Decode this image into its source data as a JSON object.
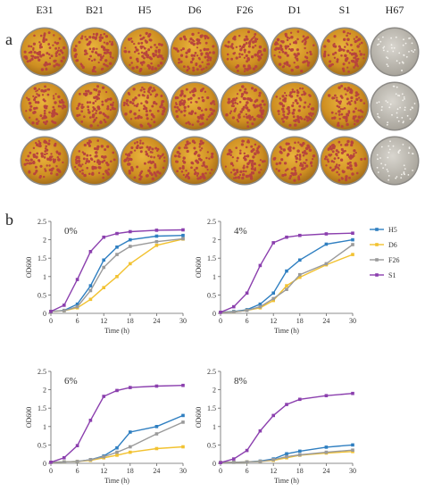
{
  "panel_a": {
    "letter": "a",
    "strains": [
      "E31",
      "B21",
      "H5",
      "D6",
      "F26",
      "D1",
      "S1",
      "H67"
    ],
    "rows": 3
  },
  "panel_b": {
    "letter": "b"
  },
  "colors": {
    "H5": "#2f7fc1",
    "D6": "#f2c230",
    "F26": "#9a9a9a",
    "S1": "#8b3fae",
    "axis": "#666666"
  },
  "chart_data": [
    {
      "type": "line",
      "annotation": "0%",
      "xlabel": "Time (h)",
      "ylabel": "OD600",
      "x": [
        0,
        3,
        6,
        9,
        12,
        15,
        18,
        24,
        30
      ],
      "xticks": [
        0,
        6,
        12,
        18,
        24,
        30
      ],
      "yticks": [
        0,
        0.5,
        1,
        1.5,
        2,
        2.5
      ],
      "xlim": [
        0,
        30
      ],
      "ylim": [
        0,
        2.5
      ],
      "series": [
        {
          "name": "H5",
          "values": [
            0.05,
            0.08,
            0.25,
            0.75,
            1.45,
            1.8,
            2.0,
            2.1,
            2.12
          ]
        },
        {
          "name": "D6",
          "values": [
            0.05,
            0.07,
            0.15,
            0.38,
            0.7,
            1.0,
            1.35,
            1.85,
            2.02
          ]
        },
        {
          "name": "F26",
          "values": [
            0.05,
            0.07,
            0.18,
            0.62,
            1.25,
            1.6,
            1.82,
            1.95,
            2.03
          ]
        },
        {
          "name": "S1",
          "values": [
            0.05,
            0.22,
            0.92,
            1.68,
            2.07,
            2.17,
            2.22,
            2.26,
            2.27
          ]
        }
      ]
    },
    {
      "type": "line",
      "annotation": "4%",
      "xlabel": "Time (h)",
      "ylabel": "OD600",
      "x": [
        0,
        3,
        6,
        9,
        12,
        15,
        18,
        24,
        30
      ],
      "xticks": [
        0,
        6,
        12,
        18,
        24,
        30
      ],
      "yticks": [
        0,
        0.5,
        1,
        1.5,
        2,
        2.5
      ],
      "xlim": [
        0,
        30
      ],
      "ylim": [
        0,
        2.5
      ],
      "series": [
        {
          "name": "H5",
          "values": [
            0.03,
            0.05,
            0.1,
            0.25,
            0.55,
            1.15,
            1.45,
            1.88,
            2.0
          ]
        },
        {
          "name": "D6",
          "values": [
            0.03,
            0.04,
            0.08,
            0.15,
            0.35,
            0.75,
            0.98,
            1.32,
            1.6
          ]
        },
        {
          "name": "F26",
          "values": [
            0.03,
            0.04,
            0.08,
            0.18,
            0.4,
            0.65,
            1.05,
            1.35,
            1.87
          ]
        },
        {
          "name": "S1",
          "values": [
            0.03,
            0.18,
            0.55,
            1.3,
            1.92,
            2.07,
            2.12,
            2.16,
            2.18
          ]
        }
      ]
    },
    {
      "type": "line",
      "annotation": "6%",
      "xlabel": "Time (h)",
      "ylabel": "OD600",
      "x": [
        0,
        3,
        6,
        9,
        12,
        15,
        18,
        24,
        30
      ],
      "xticks": [
        0,
        6,
        12,
        18,
        24,
        30
      ],
      "yticks": [
        0,
        0.5,
        1,
        1.5,
        2,
        2.5
      ],
      "xlim": [
        0,
        30
      ],
      "ylim": [
        0,
        2.5
      ],
      "series": [
        {
          "name": "H5",
          "values": [
            0.03,
            0.04,
            0.05,
            0.1,
            0.2,
            0.42,
            0.85,
            1.0,
            1.3
          ]
        },
        {
          "name": "D6",
          "values": [
            0.03,
            0.04,
            0.05,
            0.08,
            0.15,
            0.22,
            0.3,
            0.4,
            0.45
          ]
        },
        {
          "name": "F26",
          "values": [
            0.03,
            0.04,
            0.05,
            0.1,
            0.18,
            0.3,
            0.45,
            0.8,
            1.12
          ]
        },
        {
          "name": "S1",
          "values": [
            0.03,
            0.15,
            0.48,
            1.17,
            1.82,
            1.98,
            2.06,
            2.1,
            2.12
          ]
        }
      ]
    },
    {
      "type": "line",
      "annotation": "8%",
      "xlabel": "Time (h)",
      "ylabel": "OD600",
      "x": [
        0,
        3,
        6,
        9,
        12,
        15,
        18,
        24,
        30
      ],
      "xticks": [
        0,
        6,
        12,
        18,
        24,
        30
      ],
      "yticks": [
        0,
        0.5,
        1,
        1.5,
        2,
        2.5
      ],
      "xlim": [
        0,
        30
      ],
      "ylim": [
        0,
        2.5
      ],
      "series": [
        {
          "name": "H5",
          "values": [
            0.02,
            0.03,
            0.04,
            0.06,
            0.12,
            0.26,
            0.33,
            0.44,
            0.5
          ]
        },
        {
          "name": "D6",
          "values": [
            0.02,
            0.03,
            0.04,
            0.05,
            0.08,
            0.15,
            0.22,
            0.28,
            0.32
          ]
        },
        {
          "name": "F26",
          "values": [
            0.02,
            0.03,
            0.04,
            0.05,
            0.1,
            0.18,
            0.23,
            0.3,
            0.36
          ]
        },
        {
          "name": "S1",
          "values": [
            0.02,
            0.12,
            0.35,
            0.88,
            1.3,
            1.6,
            1.74,
            1.84,
            1.9
          ]
        }
      ]
    }
  ]
}
